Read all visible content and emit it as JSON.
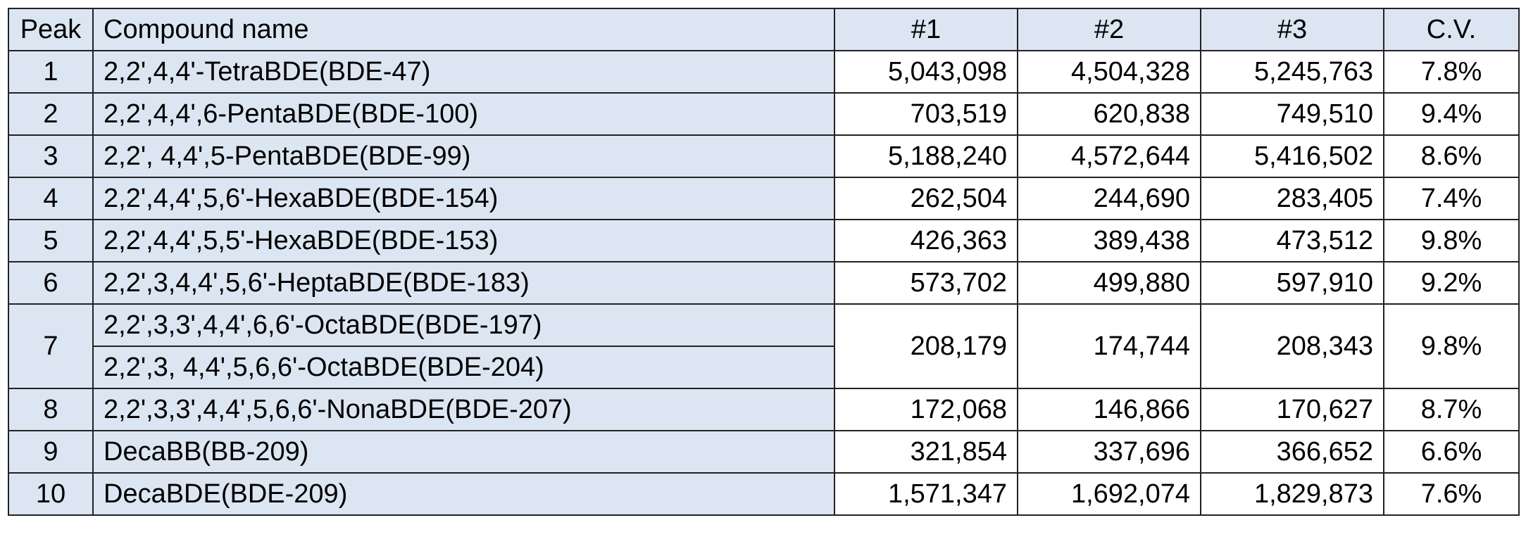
{
  "table": {
    "header": [
      "Peak",
      "Compound name",
      "#1",
      "#2",
      "#3",
      "C.V."
    ],
    "rows": [
      {
        "peak": "1",
        "compounds": [
          "2,2',4,4'-TetraBDE(BDE-47)"
        ],
        "values": [
          "5,043,098",
          "4,504,328",
          "5,245,763"
        ],
        "cv": "7.8%"
      },
      {
        "peak": "2",
        "compounds": [
          "2,2',4,4',6-PentaBDE(BDE-100)"
        ],
        "values": [
          "703,519",
          "620,838",
          "749,510"
        ],
        "cv": "9.4%"
      },
      {
        "peak": "3",
        "compounds": [
          "2,2', 4,4',5-PentaBDE(BDE-99)"
        ],
        "values": [
          "5,188,240",
          "4,572,644",
          "5,416,502"
        ],
        "cv": "8.6%"
      },
      {
        "peak": "4",
        "compounds": [
          "2,2',4,4',5,6'-HexaBDE(BDE-154)"
        ],
        "values": [
          "262,504",
          "244,690",
          "283,405"
        ],
        "cv": "7.4%"
      },
      {
        "peak": "5",
        "compounds": [
          "2,2',4,4',5,5'-HexaBDE(BDE-153)"
        ],
        "values": [
          "426,363",
          "389,438",
          "473,512"
        ],
        "cv": "9.8%"
      },
      {
        "peak": "6",
        "compounds": [
          "2,2',3,4,4',5,6'-HeptaBDE(BDE-183)"
        ],
        "values": [
          "573,702",
          "499,880",
          "597,910"
        ],
        "cv": "9.2%"
      },
      {
        "peak": "7",
        "compounds": [
          "2,2',3,3',4,4',6,6'-OctaBDE(BDE-197)",
          "2,2',3, 4,4',5,6,6'-OctaBDE(BDE-204)"
        ],
        "values": [
          "208,179",
          "174,744",
          "208,343"
        ],
        "cv": "9.8%"
      },
      {
        "peak": "8",
        "compounds": [
          "2,2',3,3',4,4',5,6,6'-NonaBDE(BDE-207)"
        ],
        "values": [
          "172,068",
          "146,866",
          "170,627"
        ],
        "cv": "8.7%"
      },
      {
        "peak": "9",
        "compounds": [
          "DecaBB(BB-209)"
        ],
        "values": [
          "321,854",
          "337,696",
          "366,652"
        ],
        "cv": "6.6%"
      },
      {
        "peak": "10",
        "compounds": [
          "DecaBDE(BDE-209)"
        ],
        "values": [
          "1,571,347",
          "1,692,074",
          "1,829,873"
        ],
        "cv": "7.6%"
      }
    ]
  }
}
